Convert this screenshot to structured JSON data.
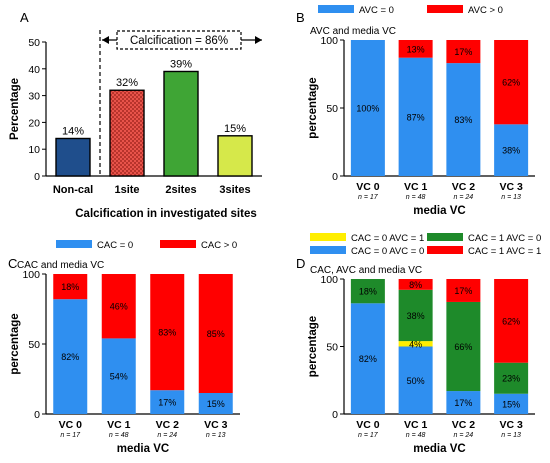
{
  "panels": {
    "A": {
      "letter": "A"
    },
    "B": {
      "letter": "B"
    },
    "C": {
      "letter": "C"
    },
    "D": {
      "letter": "D"
    }
  },
  "chart_data": [
    {
      "panel": "A",
      "type": "bar",
      "categories": [
        "Non-cal",
        "1site",
        "2sites",
        "3sites"
      ],
      "values": [
        14,
        32,
        39,
        15
      ],
      "data_labels": [
        "14%",
        "32%",
        "39%",
        "15%"
      ],
      "colors": [
        "#1f4e8c",
        "#e8534a",
        "#3fa535",
        "#d6e84a"
      ],
      "ylabel": "Percentage",
      "xlabel": "Calcification in investigated sites",
      "ylim": [
        0,
        50
      ],
      "yticks": [
        "0",
        "10",
        "20",
        "30",
        "40",
        "50"
      ],
      "annotation": "Calcification = 86%"
    },
    {
      "panel": "B",
      "type": "bar",
      "stacked": true,
      "subtitle": "AVC and media VC",
      "categories": [
        "VC 0",
        "VC 1",
        "VC 2",
        "VC 3"
      ],
      "n_labels": [
        "n = 17",
        "n = 48",
        "n = 24",
        "n = 13"
      ],
      "series": [
        {
          "name": "AVC = 0",
          "color": "#2f8ff0",
          "values": [
            100,
            87,
            83,
            38
          ],
          "labels": [
            "100%",
            "87%",
            "83%",
            "38%"
          ]
        },
        {
          "name": "AVC > 0",
          "color": "#ff0000",
          "values": [
            0,
            13,
            17,
            62
          ],
          "labels": [
            "",
            "13%",
            "17%",
            "62%"
          ]
        }
      ],
      "ylabel": "percentage",
      "xlabel": "media VC",
      "ylim": [
        0,
        100
      ],
      "yticks": [
        "0",
        "50",
        "100"
      ]
    },
    {
      "panel": "C",
      "type": "bar",
      "stacked": true,
      "subtitle": "CAC  and media VC",
      "categories": [
        "VC 0",
        "VC 1",
        "VC 2",
        "VC 3"
      ],
      "n_labels": [
        "n = 17",
        "n = 48",
        "n = 24",
        "n = 13"
      ],
      "series": [
        {
          "name": "CAC = 0",
          "color": "#2f8ff0",
          "values": [
            82,
            54,
            17,
            15
          ],
          "labels": [
            "82%",
            "54%",
            "17%",
            "15%"
          ]
        },
        {
          "name": "CAC > 0",
          "color": "#ff0000",
          "values": [
            18,
            46,
            83,
            85
          ],
          "labels": [
            "18%",
            "46%",
            "83%",
            "85%"
          ]
        }
      ],
      "ylabel": "percentage",
      "xlabel": "media VC",
      "ylim": [
        0,
        100
      ],
      "yticks": [
        "0",
        "50",
        "100"
      ]
    },
    {
      "panel": "D",
      "type": "bar",
      "stacked": true,
      "subtitle": "CAC, AVC and media VC",
      "categories": [
        "VC 0",
        "VC 1",
        "VC 2",
        "VC 3"
      ],
      "n_labels": [
        "n = 17",
        "n = 48",
        "n = 24",
        "n = 13"
      ],
      "series": [
        {
          "name": "CAC = 0 AVC = 0",
          "color": "#2f8ff0",
          "values": [
            82,
            50,
            17,
            15
          ],
          "labels": [
            "82%",
            "50%",
            "17%",
            "15%"
          ]
        },
        {
          "name": "CAC = 0 AVC = 1",
          "color": "#ffee00",
          "values": [
            0,
            4,
            0,
            0
          ],
          "labels": [
            "",
            "4%",
            "",
            ""
          ]
        },
        {
          "name": "CAC = 1 AVC = 0",
          "color": "#1e8a2a",
          "values": [
            18,
            38,
            66,
            23
          ],
          "labels": [
            "18%",
            "38%",
            "66%",
            "23%"
          ]
        },
        {
          "name": "CAC = 1 AVC = 1",
          "color": "#ff0000",
          "values": [
            0,
            8,
            17,
            62
          ],
          "labels": [
            "",
            "8%",
            "17%",
            "62%"
          ]
        }
      ],
      "legend_order": [
        "CAC = 0 AVC = 1",
        "CAC = 1 AVC = 0",
        "CAC = 0 AVC = 0",
        "CAC = 1 AVC = 1"
      ],
      "ylabel": "percentage",
      "xlabel": "media VC",
      "ylim": [
        0,
        100
      ],
      "yticks": [
        "0",
        "50",
        "100"
      ]
    }
  ]
}
